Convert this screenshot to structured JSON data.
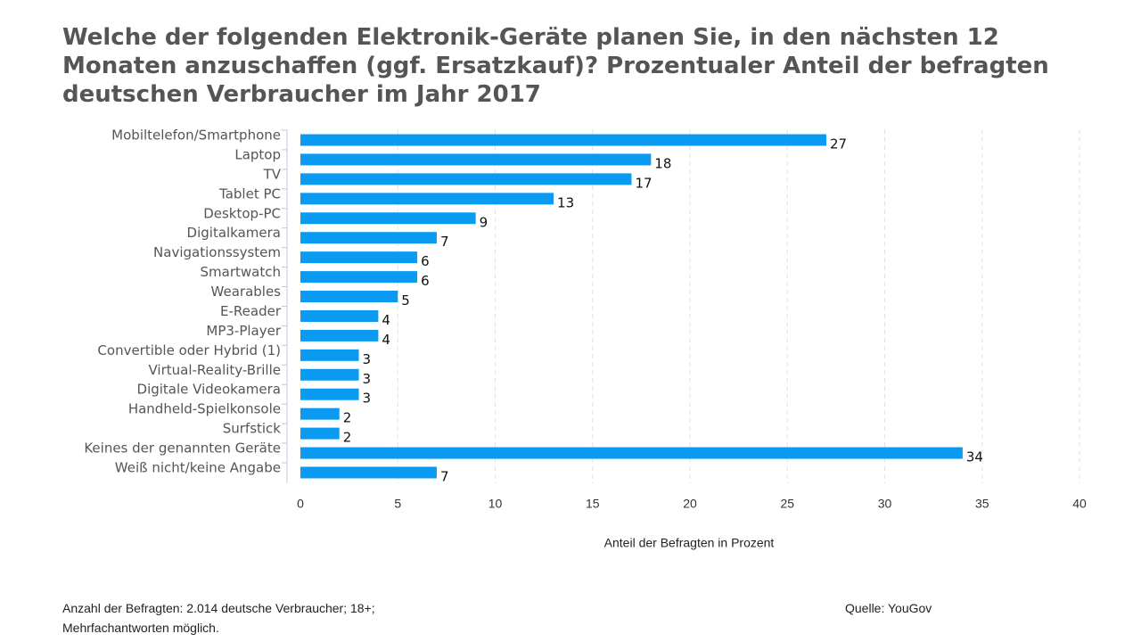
{
  "chart_data": {
    "type": "bar",
    "orientation": "horizontal",
    "title": "Welche der folgenden Elektronik-Geräte planen Sie, in den nächsten 12 Monaten anzuschaffen (ggf. Ersatzkauf)? Prozentualer Anteil der befragten deutschen Verbraucher im Jahr 2017",
    "categories": [
      "Mobiltelefon/Smartphone",
      "Laptop",
      "TV",
      "Tablet PC",
      "Desktop-PC",
      "Digitalkamera",
      "Navigationssystem",
      "Smartwatch",
      "Wearables",
      "E-Reader",
      "MP3-Player",
      "Convertible oder Hybrid (1)",
      "Virtual-Reality-Brille",
      "Digitale Videokamera",
      "Handheld-Spielkonsole",
      "Surfstick",
      "Keines der genannten Geräte",
      "Weiß nicht/keine Angabe"
    ],
    "values": [
      27,
      18,
      17,
      13,
      9,
      7,
      6,
      6,
      5,
      4,
      4,
      3,
      3,
      3,
      2,
      2,
      34,
      7
    ],
    "color": "#0b9af2",
    "xlim": [
      0,
      40
    ],
    "xticks": [
      0,
      5,
      10,
      15,
      20,
      25,
      30,
      35,
      40
    ],
    "grid": true,
    "xlabel": "Anteil der Befragten in Prozent",
    "footnote": [
      "Anzahl der Befragten: 2.014 deutsche Verbraucher; 18+;",
      "Mehrfachantworten möglich."
    ],
    "source": "Quelle: YouGov"
  }
}
